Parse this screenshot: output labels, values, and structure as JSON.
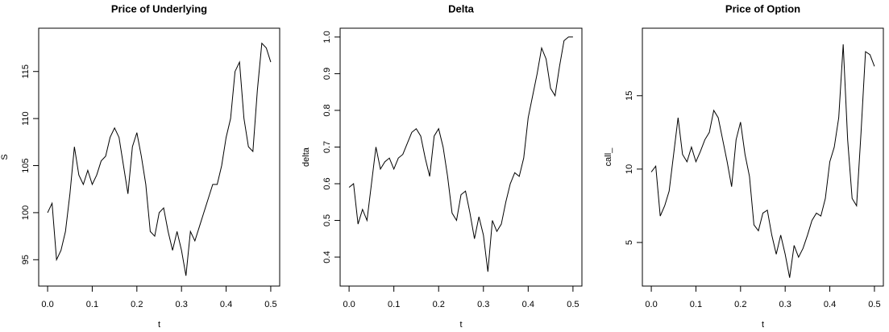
{
  "chart_data": [
    {
      "type": "line",
      "title": "Price of Underlying",
      "xlabel": "t",
      "ylabel": "S",
      "color": "#000000",
      "x": [
        0,
        0.01,
        0.02,
        0.03,
        0.04,
        0.05,
        0.06,
        0.07,
        0.08,
        0.09,
        0.1,
        0.11,
        0.12,
        0.13,
        0.14,
        0.15,
        0.16,
        0.17,
        0.18,
        0.19,
        0.2,
        0.21,
        0.22,
        0.23,
        0.24,
        0.25,
        0.26,
        0.27,
        0.28,
        0.29,
        0.3,
        0.31,
        0.32,
        0.33,
        0.34,
        0.35,
        0.36,
        0.37,
        0.38,
        0.39,
        0.4,
        0.41,
        0.42,
        0.43,
        0.44,
        0.45,
        0.46,
        0.47,
        0.48,
        0.49,
        0.5
      ],
      "values": [
        100,
        101,
        95,
        96,
        98,
        102,
        107,
        104,
        103,
        104.5,
        103,
        104,
        105.5,
        106,
        108,
        109,
        108,
        105,
        102,
        107,
        108.5,
        106,
        103,
        98,
        97.5,
        100,
        100.5,
        98,
        96,
        98,
        96,
        93.3,
        98,
        97,
        98.5,
        100,
        101.5,
        103,
        103,
        105,
        108,
        110,
        115,
        116,
        110,
        107,
        106.5,
        113,
        118,
        117.5,
        116
      ],
      "xlim": [
        -0.02,
        0.52
      ],
      "ylim": [
        92.2,
        119.6
      ],
      "xticks": [
        {
          "value": 0,
          "label": "0.0"
        },
        0.1,
        0.2,
        0.3,
        0.4,
        0.5
      ],
      "yticks": [
        95,
        100,
        105,
        110,
        115
      ]
    },
    {
      "type": "line",
      "title": "Delta",
      "xlabel": "t",
      "ylabel": "delta",
      "color": "#000000",
      "x": [
        0,
        0.01,
        0.02,
        0.03,
        0.04,
        0.05,
        0.06,
        0.07,
        0.08,
        0.09,
        0.1,
        0.11,
        0.12,
        0.13,
        0.14,
        0.15,
        0.16,
        0.17,
        0.18,
        0.19,
        0.2,
        0.21,
        0.22,
        0.23,
        0.24,
        0.25,
        0.26,
        0.27,
        0.28,
        0.29,
        0.3,
        0.31,
        0.32,
        0.33,
        0.34,
        0.35,
        0.36,
        0.37,
        0.38,
        0.39,
        0.4,
        0.41,
        0.42,
        0.43,
        0.44,
        0.45,
        0.46,
        0.47,
        0.48,
        0.49,
        0.5
      ],
      "values": [
        0.59,
        0.6,
        0.49,
        0.53,
        0.5,
        0.6,
        0.7,
        0.64,
        0.66,
        0.67,
        0.64,
        0.67,
        0.68,
        0.71,
        0.74,
        0.75,
        0.73,
        0.67,
        0.62,
        0.73,
        0.75,
        0.7,
        0.62,
        0.52,
        0.5,
        0.57,
        0.58,
        0.52,
        0.45,
        0.51,
        0.46,
        0.36,
        0.5,
        0.47,
        0.49,
        0.55,
        0.6,
        0.63,
        0.62,
        0.67,
        0.78,
        0.84,
        0.9,
        0.97,
        0.94,
        0.86,
        0.84,
        0.92,
        0.99,
        1,
        1
      ],
      "xlim": [
        -0.02,
        0.52
      ],
      "ylim": [
        0.321,
        1.024
      ],
      "xticks": [
        {
          "value": 0,
          "label": "0.0"
        },
        0.1,
        0.2,
        0.3,
        0.4,
        0.5
      ],
      "yticks": [
        0.4,
        0.5,
        0.6,
        0.7,
        0.8,
        0.9,
        {
          "value": 1,
          "label": "1.0"
        }
      ]
    },
    {
      "type": "line",
      "title": "Price of Option",
      "xlabel": "t",
      "ylabel": "call_",
      "color": "#000000",
      "x": [
        0,
        0.01,
        0.02,
        0.03,
        0.04,
        0.05,
        0.06,
        0.07,
        0.08,
        0.09,
        0.1,
        0.11,
        0.12,
        0.13,
        0.14,
        0.15,
        0.16,
        0.17,
        0.18,
        0.19,
        0.2,
        0.21,
        0.22,
        0.23,
        0.24,
        0.25,
        0.26,
        0.27,
        0.28,
        0.29,
        0.3,
        0.31,
        0.32,
        0.33,
        0.34,
        0.35,
        0.36,
        0.37,
        0.38,
        0.39,
        0.4,
        0.41,
        0.42,
        0.43,
        0.44,
        0.45,
        0.46,
        0.47,
        0.48,
        0.49,
        0.5
      ],
      "values": [
        9.8,
        10.2,
        6.8,
        7.5,
        8.5,
        11,
        13.5,
        11,
        10.5,
        11.5,
        10.5,
        11.2,
        12,
        12.5,
        14,
        13.5,
        12,
        10.5,
        8.8,
        12,
        13.2,
        11,
        9.5,
        6.2,
        5.8,
        7,
        7.2,
        5.5,
        4.2,
        5.5,
        4.2,
        2.6,
        4.8,
        4,
        4.6,
        5.5,
        6.5,
        7,
        6.8,
        8,
        10.5,
        11.5,
        13.5,
        18.5,
        12,
        8,
        7.5,
        12.5,
        18,
        17.8,
        17
      ],
      "xlim": [
        -0.02,
        0.52
      ],
      "ylim": [
        2.03,
        19.6
      ],
      "xticks": [
        {
          "value": 0,
          "label": "0.0"
        },
        0.1,
        0.2,
        0.3,
        0.4,
        0.5
      ],
      "yticks": [
        5,
        10,
        15
      ]
    }
  ]
}
